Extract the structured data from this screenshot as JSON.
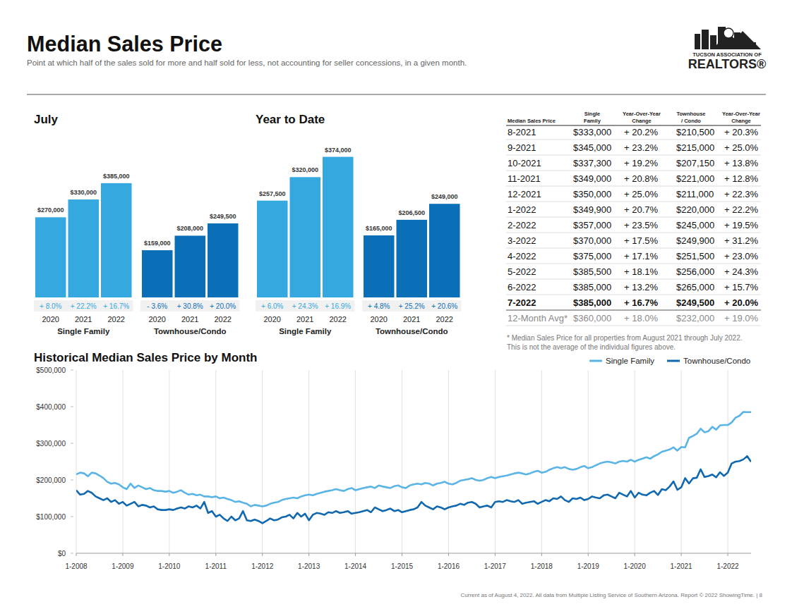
{
  "header": {
    "title": "Median Sales Price",
    "subtitle": "Point at which half of the sales sold for more and half sold for less, not accounting for seller concessions, in a given month.",
    "logo_lines": [
      "TUCSON ASSOCIATION OF",
      "REALTORS®"
    ]
  },
  "chart_data": [
    {
      "type": "bar",
      "title": "July",
      "categories": [
        "2020",
        "2021",
        "2022"
      ],
      "series": [
        {
          "name": "Single Family",
          "color": "#35a8e0",
          "values": [
            270000,
            330000,
            385000
          ],
          "value_labels": [
            "$270,000",
            "$330,000",
            "$385,000"
          ],
          "change_labels": [
            "+ 8.0%",
            "+ 22.2%",
            "+ 16.7%"
          ]
        },
        {
          "name": "Townhouse/Condo",
          "color": "#0b6fb8",
          "values": [
            159000,
            208000,
            249500
          ],
          "value_labels": [
            "$159,000",
            "$208,000",
            "$249,500"
          ],
          "change_labels": [
            "- 3.6%",
            "+ 30.8%",
            "+ 20.0%"
          ]
        }
      ],
      "ylim": [
        0,
        570000
      ],
      "data_labels": true,
      "tick_labels": "x"
    },
    {
      "type": "bar",
      "title": "Year to Date",
      "categories": [
        "2020",
        "2021",
        "2022"
      ],
      "series": [
        {
          "name": "Single Family",
          "color": "#35a8e0",
          "values": [
            257500,
            320000,
            374000
          ],
          "value_labels": [
            "$257,500",
            "$320,000",
            "$374,000"
          ],
          "change_labels": [
            "+ 6.0%",
            "+ 24.3%",
            "+ 16.9%"
          ]
        },
        {
          "name": "Townhouse/Condo",
          "color": "#0b6fb8",
          "values": [
            165000,
            206500,
            249000
          ],
          "value_labels": [
            "$165,000",
            "$206,500",
            "$249,000"
          ],
          "change_labels": [
            "+ 4.8%",
            "+ 25.2%",
            "+ 20.6%"
          ]
        }
      ],
      "ylim": [
        0,
        450000
      ],
      "data_labels": true,
      "tick_labels": "x"
    },
    {
      "type": "line",
      "title": "Historical Median Sales Price by Month",
      "categories": [
        "1-2008",
        null,
        null,
        null,
        null,
        null,
        null,
        null,
        null,
        null,
        null,
        null,
        "1-2009",
        null,
        null,
        null,
        null,
        null,
        null,
        null,
        null,
        null,
        null,
        null,
        "1-2010",
        null,
        null,
        null,
        null,
        null,
        null,
        null,
        null,
        null,
        null,
        null,
        "1-2011",
        null,
        null,
        null,
        null,
        null,
        null,
        null,
        null,
        null,
        null,
        null,
        "1-2012",
        null,
        null,
        null,
        null,
        null,
        null,
        null,
        null,
        null,
        null,
        null,
        "1-2013",
        null,
        null,
        null,
        null,
        null,
        null,
        null,
        null,
        null,
        null,
        null,
        "1-2014",
        null,
        null,
        null,
        null,
        null,
        null,
        null,
        null,
        null,
        null,
        null,
        "1-2015",
        null,
        null,
        null,
        null,
        null,
        null,
        null,
        null,
        null,
        null,
        null,
        "1-2016",
        null,
        null,
        null,
        null,
        null,
        null,
        null,
        null,
        null,
        null,
        null,
        "1-2017",
        null,
        null,
        null,
        null,
        null,
        null,
        null,
        null,
        null,
        null,
        null,
        "1-2018",
        null,
        null,
        null,
        null,
        null,
        null,
        null,
        null,
        null,
        null,
        null,
        "1-2019",
        null,
        null,
        null,
        null,
        null,
        null,
        null,
        null,
        null,
        null,
        null,
        "1-2020",
        null,
        null,
        null,
        null,
        null,
        null,
        null,
        null,
        null,
        null,
        null,
        "1-2021",
        null,
        null,
        null,
        null,
        null,
        null,
        null,
        null,
        null,
        null,
        null,
        "1-2022",
        null,
        null,
        null,
        null,
        null,
        null
      ],
      "series": [
        {
          "name": "Single Family",
          "color": "#5ab4e5",
          "values": [
            215000,
            220000,
            218000,
            210000,
            220000,
            218000,
            212000,
            205000,
            195000,
            190000,
            192000,
            188000,
            180000,
            175000,
            190000,
            178000,
            185000,
            180000,
            175000,
            178000,
            172000,
            170000,
            170000,
            168000,
            170000,
            165000,
            168000,
            172000,
            165000,
            160000,
            162000,
            158000,
            160000,
            155000,
            155000,
            153000,
            155000,
            150000,
            152000,
            148000,
            145000,
            140000,
            142000,
            138000,
            135000,
            128000,
            132000,
            130000,
            128000,
            130000,
            135000,
            138000,
            140000,
            145000,
            148000,
            150000,
            152000,
            150000,
            155000,
            158000,
            160000,
            158000,
            162000,
            165000,
            168000,
            170000,
            172000,
            175000,
            172000,
            170000,
            175000,
            178000,
            172000,
            175000,
            178000,
            180000,
            182000,
            178000,
            185000,
            182000,
            180000,
            178000,
            183000,
            185000,
            180000,
            178000,
            185000,
            188000,
            190000,
            188000,
            192000,
            190000,
            185000,
            190000,
            192000,
            195000,
            190000,
            188000,
            192000,
            198000,
            200000,
            202000,
            205000,
            200000,
            198000,
            200000,
            205000,
            208000,
            205000,
            208000,
            210000,
            212000,
            215000,
            218000,
            220000,
            218000,
            215000,
            218000,
            222000,
            225000,
            220000,
            222000,
            228000,
            232000,
            235000,
            232000,
            235000,
            230000,
            228000,
            230000,
            235000,
            238000,
            232000,
            235000,
            240000,
            245000,
            248000,
            250000,
            248000,
            245000,
            250000,
            252000,
            250000,
            255000,
            250000,
            255000,
            258000,
            262000,
            258000,
            265000,
            270000,
            277000,
            280000,
            283000,
            289000,
            280000,
            290000,
            289000,
            315000,
            320000,
            326000,
            340000,
            330000,
            333000,
            345000,
            337300,
            349000,
            350000,
            349900,
            357000,
            370000,
            375000,
            385500,
            385000,
            385000
          ]
        },
        {
          "name": "Townhouse/Condo",
          "color": "#1069b0",
          "values": [
            172000,
            160000,
            162000,
            170000,
            165000,
            155000,
            150000,
            145000,
            150000,
            140000,
            145000,
            135000,
            140000,
            130000,
            135000,
            140000,
            128000,
            132000,
            130000,
            125000,
            128000,
            120000,
            118000,
            118000,
            120000,
            118000,
            122000,
            125000,
            122000,
            128000,
            125000,
            130000,
            122000,
            140000,
            110000,
            115000,
            100000,
            105000,
            95000,
            88000,
            100000,
            90000,
            95000,
            115000,
            90000,
            88000,
            92000,
            88000,
            82000,
            88000,
            95000,
            90000,
            92000,
            98000,
            100000,
            105000,
            95000,
            110000,
            100000,
            108000,
            90000,
            105000,
            110000,
            108000,
            105000,
            112000,
            110000,
            115000,
            110000,
            112000,
            115000,
            108000,
            110000,
            112000,
            115000,
            118000,
            112000,
            125000,
            120000,
            115000,
            118000,
            122000,
            115000,
            118000,
            112000,
            115000,
            118000,
            120000,
            125000,
            140000,
            130000,
            125000,
            120000,
            128000,
            125000,
            120000,
            125000,
            128000,
            130000,
            135000,
            132000,
            138000,
            140000,
            135000,
            125000,
            128000,
            130000,
            125000,
            140000,
            142000,
            140000,
            145000,
            142000,
            140000,
            145000,
            135000,
            138000,
            140000,
            142000,
            135000,
            140000,
            145000,
            142000,
            150000,
            148000,
            155000,
            145000,
            140000,
            150000,
            148000,
            152000,
            145000,
            148000,
            155000,
            152000,
            150000,
            158000,
            160000,
            155000,
            150000,
            165000,
            160000,
            155000,
            170000,
            152000,
            165000,
            160000,
            158000,
            165000,
            170000,
            159000,
            175000,
            172000,
            182000,
            196000,
            173000,
            180000,
            205000,
            190500,
            204500,
            206000,
            229000,
            208000,
            210500,
            215000,
            207150,
            221000,
            211000,
            220000,
            245000,
            249900,
            251500,
            256000,
            265000,
            249500
          ]
        }
      ],
      "ylim": [
        0,
        500000
      ],
      "yticks": [
        {
          "value": 0,
          "label": "$0"
        },
        {
          "value": 100000,
          "label": "$100,000"
        },
        {
          "value": 200000,
          "label": "$200,000"
        },
        {
          "value": 300000,
          "label": "$300,000"
        },
        {
          "value": 400000,
          "label": "$400,000"
        },
        {
          "value": 500000,
          "label": "$500,000"
        }
      ],
      "grid": true,
      "legend": "top-right"
    }
  ],
  "table": {
    "header": [
      "Median Sales Price",
      "Single Family",
      "Year-Over-Year Change",
      "Townhouse / Condo",
      "Year-Over-Year Change"
    ],
    "rows": [
      [
        "8-2021",
        "$333,000",
        "+ 20.2%",
        "$210,500",
        "+ 20.3%"
      ],
      [
        "9-2021",
        "$345,000",
        "+ 23.2%",
        "$215,000",
        "+ 25.0%"
      ],
      [
        "10-2021",
        "$337,300",
        "+ 19.2%",
        "$207,150",
        "+ 13.8%"
      ],
      [
        "11-2021",
        "$349,000",
        "+ 20.8%",
        "$221,000",
        "+ 12.8%"
      ],
      [
        "12-2021",
        "$350,000",
        "+ 25.0%",
        "$211,000",
        "+ 22.3%"
      ],
      [
        "1-2022",
        "$349,900",
        "+ 20.7%",
        "$220,000",
        "+ 22.2%"
      ],
      [
        "2-2022",
        "$357,000",
        "+ 23.5%",
        "$245,000",
        "+ 19.5%"
      ],
      [
        "3-2022",
        "$370,000",
        "+ 17.5%",
        "$249,900",
        "+ 31.2%"
      ],
      [
        "4-2022",
        "$375,000",
        "+ 17.1%",
        "$251,500",
        "+ 23.0%"
      ],
      [
        "5-2022",
        "$385,500",
        "+ 18.1%",
        "$256,000",
        "+ 24.3%"
      ],
      [
        "6-2022",
        "$385,000",
        "+ 13.2%",
        "$265,000",
        "+ 15.7%"
      ],
      [
        "7-2022",
        "$385,000",
        "+ 16.7%",
        "$249,500",
        "+ 20.0%"
      ],
      [
        "12-Month Avg*",
        "$360,000",
        "+ 18.0%",
        "$232,000",
        "+ 19.0%"
      ]
    ],
    "footnote": [
      "* Median Sales Price for all properties from August 2021 through July 2022.",
      "This is not the average of the individual figures above."
    ]
  },
  "footer": {
    "text": "Current as of August 4, 2022. All data from Multiple Listing Service of Southern Arizona. Report © 2022 ShowingTime.  |  8"
  }
}
